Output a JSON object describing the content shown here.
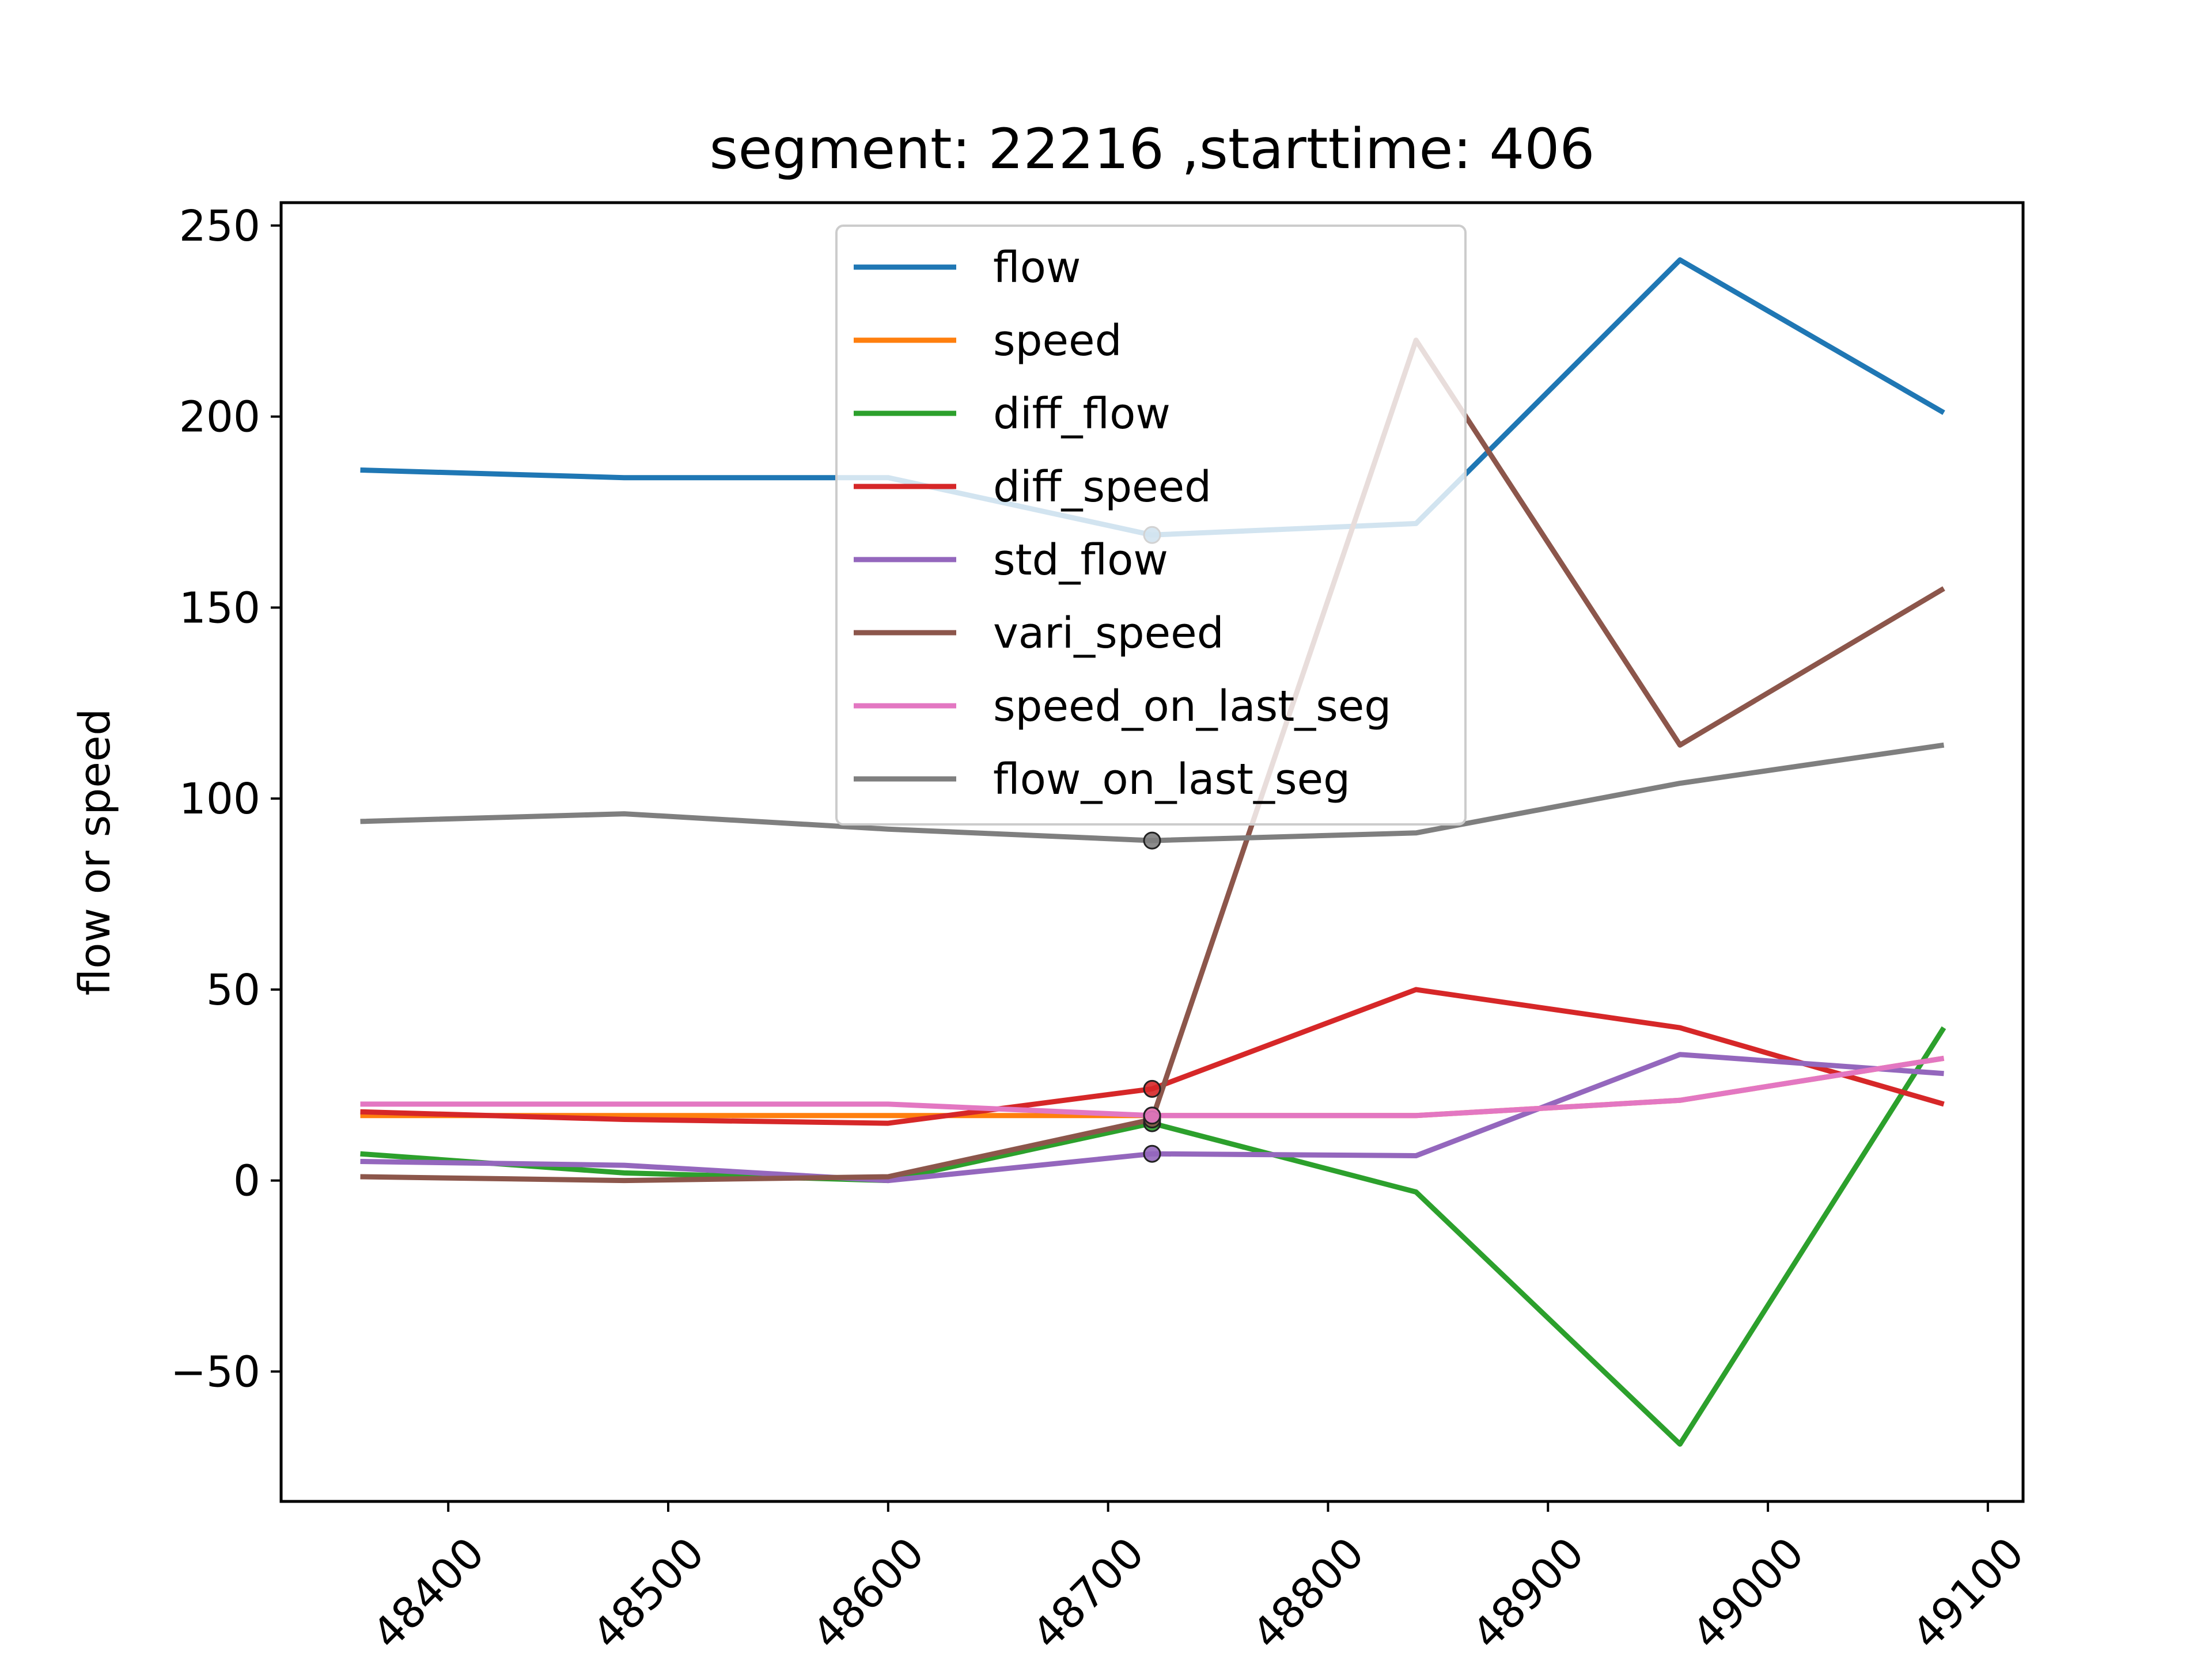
{
  "chart_data": {
    "type": "line",
    "title": "segment: 22216 ,starttime: 406",
    "xlabel": "",
    "ylabel": "flow or speed",
    "xlim": [
      48324,
      49116
    ],
    "ylim": [
      -84,
      256
    ],
    "x": [
      48360,
      48480,
      48600,
      48720,
      48840,
      48960,
      49080
    ],
    "xticks": [
      48400,
      48500,
      48600,
      48700,
      48800,
      48900,
      49000,
      49100
    ],
    "yticks": [
      -50,
      0,
      50,
      100,
      150,
      200,
      250
    ],
    "xtick_labels": [
      "48400",
      "48500",
      "48600",
      "48700",
      "48800",
      "48900",
      "49000",
      "49100"
    ],
    "ytick_labels": [
      "−50",
      "0",
      "50",
      "100",
      "150",
      "200",
      "250"
    ],
    "grid": false,
    "legend_position": "upper center",
    "highlight_x": 48720,
    "series": [
      {
        "name": "flow",
        "color": "#1f77b4",
        "values": [
          186,
          184,
          184,
          169,
          172,
          241,
          201
        ]
      },
      {
        "name": "speed",
        "color": "#ff7f0e",
        "values": [
          17,
          17,
          17,
          17,
          17,
          21,
          32
        ]
      },
      {
        "name": "diff_flow",
        "color": "#2ca02c",
        "values": [
          7,
          2,
          0,
          15,
          -3,
          -69,
          40
        ]
      },
      {
        "name": "diff_speed",
        "color": "#d62728",
        "values": [
          18,
          16,
          15,
          24,
          50,
          40,
          20
        ]
      },
      {
        "name": "std_flow",
        "color": "#9467bd",
        "values": [
          5,
          4,
          0,
          7,
          6.5,
          33,
          28
        ]
      },
      {
        "name": "vari_speed",
        "color": "#8c564b",
        "values": [
          1,
          0,
          1,
          16,
          220,
          114,
          155
        ]
      },
      {
        "name": "speed_on_last_seg",
        "color": "#e377c2",
        "values": [
          20,
          20,
          20,
          17,
          17,
          21,
          32
        ]
      },
      {
        "name": "flow_on_last_seg",
        "color": "#7f7f7f",
        "values": [
          94,
          96,
          92,
          89,
          91,
          104,
          114
        ]
      }
    ]
  }
}
